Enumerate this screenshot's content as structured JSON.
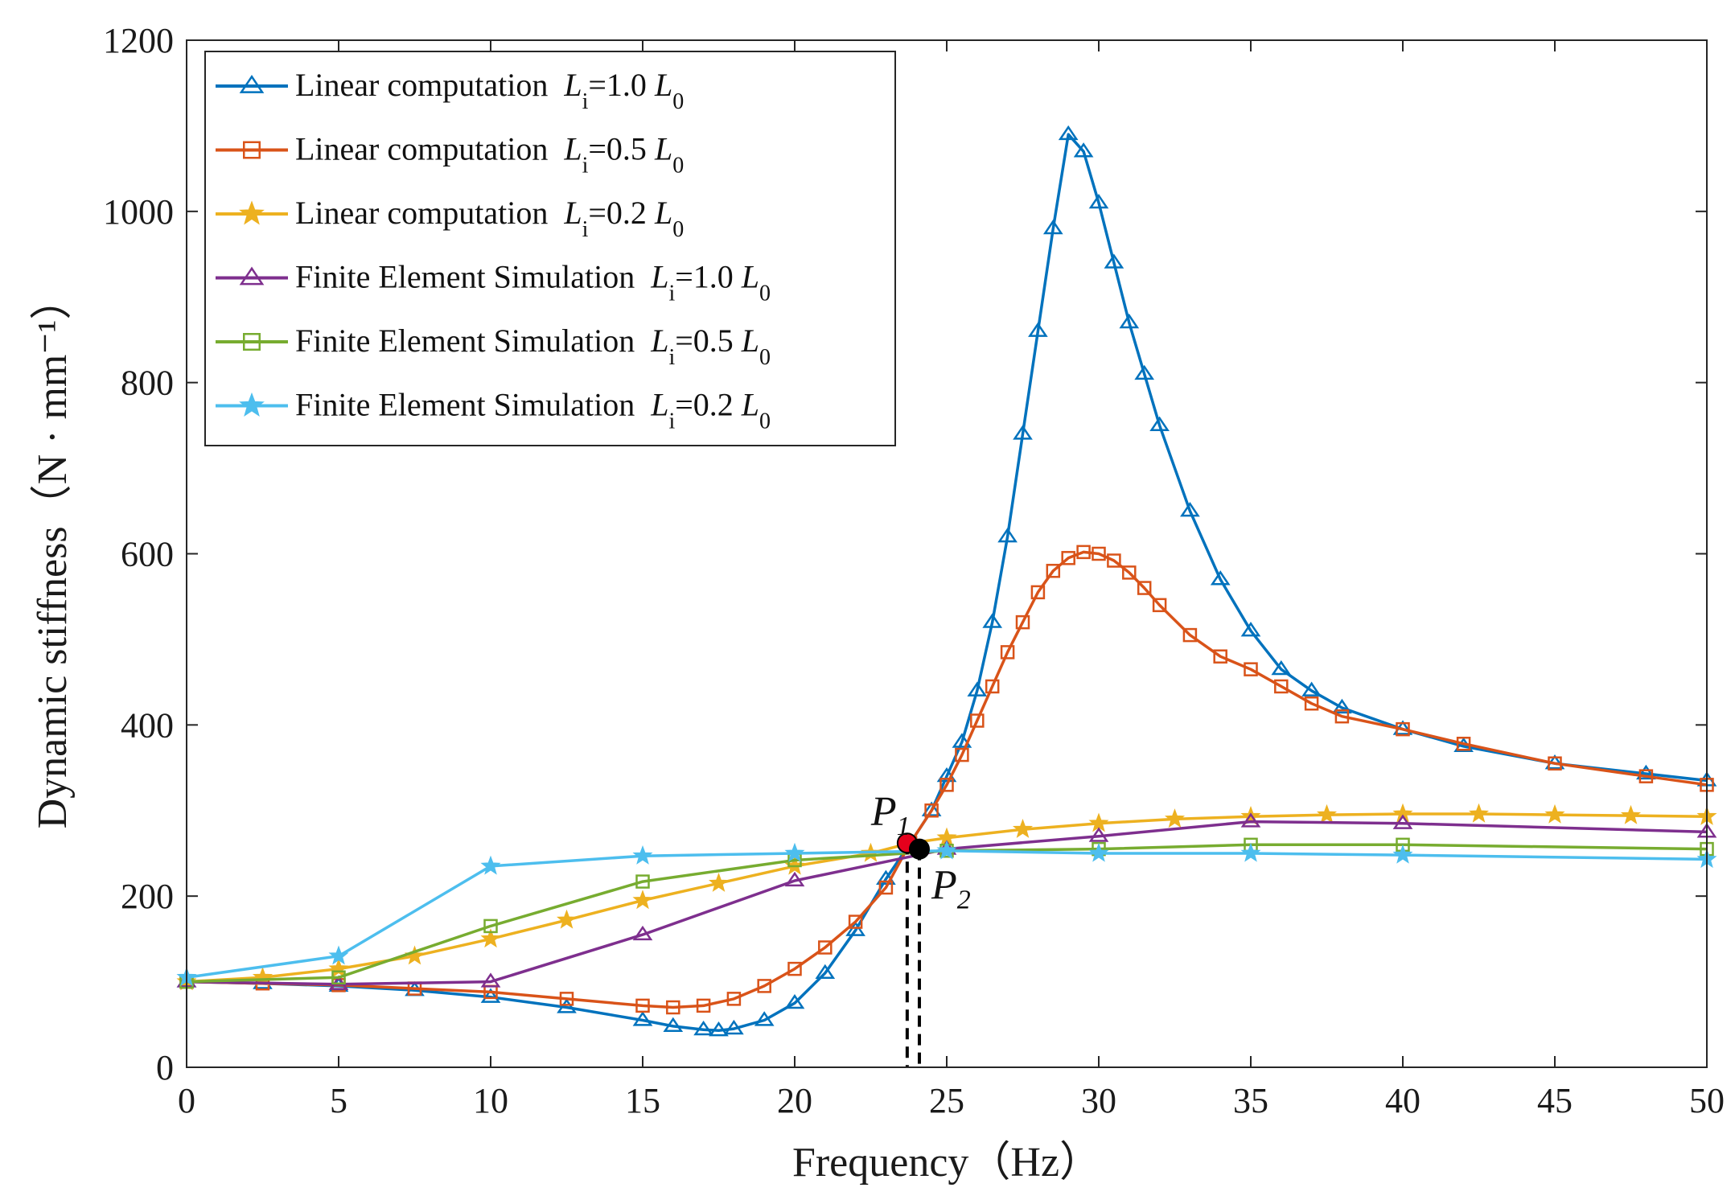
{
  "chart_data": {
    "type": "line",
    "title": "",
    "xlabel": "Frequency（Hz）",
    "ylabel": "Dynamic stiffness（N · mm⁻¹）",
    "xlim": [
      0,
      50
    ],
    "ylim": [
      0,
      1200
    ],
    "xticks": [
      0,
      5,
      10,
      15,
      20,
      25,
      30,
      35,
      40,
      45,
      50
    ],
    "yticks": [
      0,
      200,
      400,
      600,
      800,
      1000,
      1200
    ],
    "grid": false,
    "legend_position": "top-left",
    "colors": {
      "blue": "#0072BD",
      "orange": "#D95319",
      "yellow": "#EDB120",
      "purple": "#7E2F8E",
      "green": "#77AC30",
      "cyan": "#4DBEEE",
      "marker_red": "#E5001C",
      "dash": "#000000"
    },
    "series": [
      {
        "name": "Linear computation  Li=1.0 L0",
        "legend": {
          "prefix": "Linear computation  ",
          "var": "L",
          "sub": "i",
          "ratio": "=1.0 ",
          "ref": "L",
          "refsub": "0"
        },
        "color": "#0072BD",
        "marker": "triangle",
        "x": [
          0,
          2.5,
          5,
          7.5,
          10,
          12.5,
          15,
          16,
          17,
          17.5,
          18,
          19,
          20,
          21,
          22,
          23,
          23.8,
          24.5,
          25,
          25.5,
          26,
          26.5,
          27,
          27.5,
          28,
          28.5,
          29,
          29.5,
          30,
          30.5,
          31,
          31.5,
          32,
          33,
          34,
          35,
          36,
          37,
          38,
          40,
          42,
          45,
          48,
          50
        ],
        "values": [
          100,
          98,
          95,
          90,
          82,
          70,
          55,
          48,
          44,
          43,
          45,
          55,
          75,
          110,
          160,
          220,
          262,
          300,
          340,
          380,
          440,
          520,
          620,
          740,
          860,
          980,
          1090,
          1070,
          1010,
          940,
          870,
          810,
          750,
          650,
          570,
          510,
          465,
          440,
          420,
          395,
          375,
          355,
          343,
          335
        ]
      },
      {
        "name": "Linear computation  Li=0.5 L0",
        "legend": {
          "prefix": "Linear computation  ",
          "var": "L",
          "sub": "i",
          "ratio": "=0.5 ",
          "ref": "L",
          "refsub": "0"
        },
        "color": "#D95319",
        "marker": "square",
        "x": [
          0,
          2.5,
          5,
          7.5,
          10,
          12.5,
          15,
          16,
          17,
          18,
          19,
          20,
          21,
          22,
          23,
          23.8,
          24.5,
          25,
          25.5,
          26,
          26.5,
          27,
          27.5,
          28,
          28.5,
          29,
          29.5,
          30,
          30.5,
          31,
          31.5,
          32,
          33,
          34,
          35,
          36,
          37,
          38,
          40,
          42,
          45,
          48,
          50
        ],
        "values": [
          100,
          98,
          96,
          92,
          88,
          80,
          72,
          70,
          72,
          80,
          95,
          115,
          140,
          170,
          210,
          262,
          300,
          330,
          365,
          405,
          445,
          485,
          520,
          555,
          580,
          595,
          602,
          600,
          592,
          578,
          560,
          540,
          505,
          480,
          465,
          445,
          425,
          410,
          395,
          378,
          355,
          340,
          330
        ]
      },
      {
        "name": "Linear computation  Li=0.2 L0",
        "legend": {
          "prefix": "Linear computation  ",
          "var": "L",
          "sub": "i",
          "ratio": "=0.2 ",
          "ref": "L",
          "refsub": "0"
        },
        "color": "#EDB120",
        "marker": "star",
        "x": [
          0,
          2.5,
          5,
          7.5,
          10,
          12.5,
          15,
          17.5,
          20,
          22.5,
          23.8,
          25,
          27.5,
          30,
          32.5,
          35,
          37.5,
          40,
          42.5,
          45,
          47.5,
          50
        ],
        "values": [
          100,
          105,
          115,
          130,
          150,
          172,
          195,
          215,
          235,
          250,
          262,
          268,
          278,
          285,
          290,
          293,
          295,
          296,
          296,
          295,
          294,
          293
        ]
      },
      {
        "name": "Finite Element Simulation  Li=1.0 L0",
        "legend": {
          "prefix": "Finite Element Simulation  ",
          "var": "L",
          "sub": "i",
          "ratio": "=1.0 ",
          "ref": "L",
          "refsub": "0"
        },
        "color": "#7E2F8E",
        "marker": "triangle",
        "x": [
          0,
          5,
          10,
          15,
          20,
          25,
          30,
          35,
          40,
          50
        ],
        "values": [
          100,
          97,
          100,
          155,
          218,
          255,
          270,
          287,
          285,
          275
        ]
      },
      {
        "name": "Finite Element Simulation  Li=0.5 L0",
        "legend": {
          "prefix": "Finite Element Simulation  ",
          "var": "L",
          "sub": "i",
          "ratio": "=0.5 ",
          "ref": "L",
          "refsub": "0"
        },
        "color": "#77AC30",
        "marker": "square",
        "x": [
          0,
          5,
          10,
          15,
          20,
          25,
          30,
          35,
          40,
          50
        ],
        "values": [
          100,
          105,
          165,
          217,
          242,
          253,
          255,
          260,
          260,
          255
        ]
      },
      {
        "name": "Finite Element Simulation  Li=0.2 L0",
        "legend": {
          "prefix": "Finite Element Simulation  ",
          "var": "L",
          "sub": "i",
          "ratio": "=0.2 ",
          "ref": "L",
          "refsub": "0"
        },
        "color": "#4DBEEE",
        "marker": "star",
        "x": [
          0,
          5,
          10,
          15,
          20,
          25,
          30,
          35,
          40,
          50
        ],
        "values": [
          105,
          130,
          235,
          247,
          250,
          253,
          250,
          250,
          248,
          243
        ]
      }
    ],
    "annotations": [
      {
        "label": "P",
        "sub": "1",
        "x": 23.7,
        "y": 262,
        "color": "#E5001C",
        "text_side": "upper-left"
      },
      {
        "label": "P",
        "sub": "2",
        "x": 24.1,
        "y": 255,
        "color": "#000000",
        "text_side": "lower-right"
      }
    ]
  }
}
